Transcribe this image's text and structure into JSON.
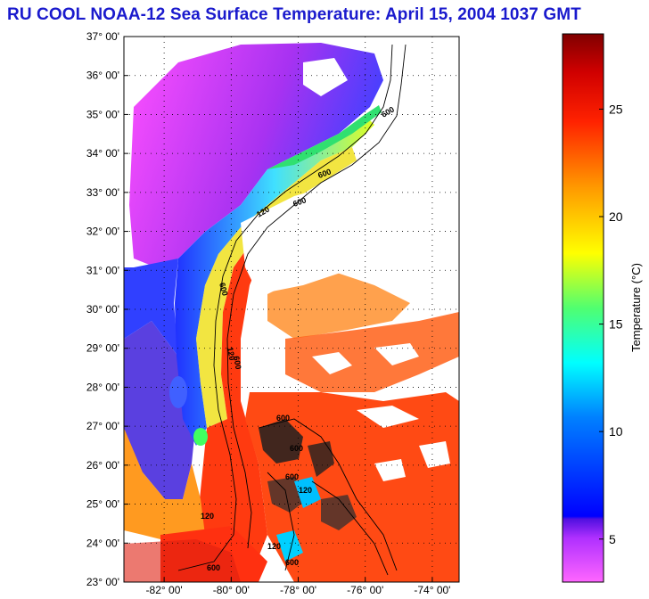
{
  "title": "RU COOL  NOAA-12  Sea Surface Temperature:  April 15, 2004 1037 GMT",
  "map": {
    "lat_ticks": [
      {
        "label": "37° 00'"
      },
      {
        "label": "36° 00'"
      },
      {
        "label": "35° 00'"
      },
      {
        "label": "34° 00'"
      },
      {
        "label": "33° 00'"
      },
      {
        "label": "32° 00'"
      },
      {
        "label": "31° 00'"
      },
      {
        "label": "30° 00'"
      },
      {
        "label": "29° 00'"
      },
      {
        "label": "28° 00'"
      },
      {
        "label": "27° 00'"
      },
      {
        "label": "26° 00'"
      },
      {
        "label": "25° 00'"
      },
      {
        "label": "24° 00'"
      },
      {
        "label": "23° 00'"
      }
    ],
    "lon_ticks": [
      {
        "label": "-82° 00'"
      },
      {
        "label": "-80° 00'"
      },
      {
        "label": "-78° 00'"
      },
      {
        "label": "-76° 00'"
      },
      {
        "label": "-74° 00'"
      }
    ],
    "lat_range": [
      23,
      37
    ],
    "lon_range": [
      -83.2,
      -73.2
    ],
    "grid": true,
    "isobath_labels": [
      "600",
      "600",
      "120",
      "600",
      "600",
      "120",
      "600",
      "600",
      "600",
      "120",
      "600",
      "120",
      "600",
      "120",
      "600"
    ]
  },
  "colorbar": {
    "label": "Temperature (°C)",
    "ticks": [
      {
        "value": 5,
        "label": "5"
      },
      {
        "value": 10,
        "label": "10"
      },
      {
        "value": 15,
        "label": "15"
      },
      {
        "value": 20,
        "label": "20"
      },
      {
        "value": 25,
        "label": "25"
      }
    ],
    "range": [
      3,
      28.5
    ],
    "colors": [
      "#ff3cf2",
      "#a020f0",
      "#0000ff",
      "#00a0ff",
      "#00ffff",
      "#40ff80",
      "#ffff00",
      "#ffa000",
      "#ff3000",
      "#e00000",
      "#800000"
    ]
  }
}
